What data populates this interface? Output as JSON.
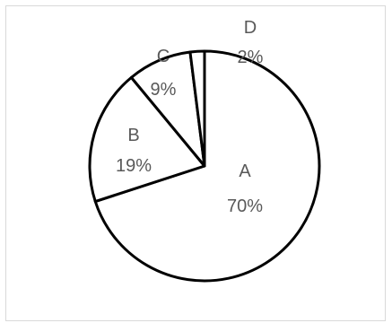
{
  "chart_data": {
    "type": "pie",
    "title": "",
    "slices": [
      {
        "category": "A",
        "value": 70,
        "value_label": "70%"
      },
      {
        "category": "B",
        "value": 19,
        "value_label": "19%"
      },
      {
        "category": "C",
        "value": 9,
        "value_label": "9%"
      },
      {
        "category": "D",
        "value": 2,
        "value_label": "2%"
      }
    ],
    "fill_color": "#ffffff",
    "stroke_color": "#000000",
    "label_color": "#595959",
    "legend": "none"
  }
}
